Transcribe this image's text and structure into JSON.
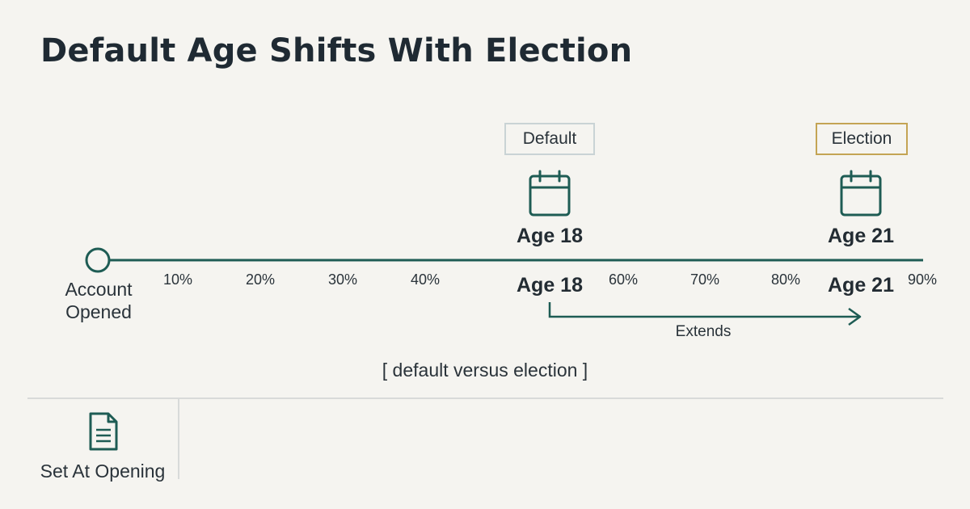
{
  "title": "Default Age Shifts With Election",
  "colors": {
    "background": "#f5f4f0",
    "accent": "#1e5c54",
    "title": "#1f2a33",
    "default_tag_border": "#c9d3d5",
    "election_tag_border": "#c4a454",
    "divider": "#d8dad9"
  },
  "timeline": {
    "origin_label_line1": "Account",
    "origin_label_line2": "Opened",
    "ticks": [
      "10%",
      "20%",
      "30%",
      "40%",
      "60%",
      "70%",
      "80%",
      "90%"
    ],
    "default": {
      "tag": "Default",
      "icon": "calendar-icon",
      "age_top": "Age 18",
      "age_bottom": "Age 18"
    },
    "election": {
      "tag": "Election",
      "icon": "calendar-icon",
      "age_top": "Age 21",
      "age_bottom": "Age 21"
    },
    "extends_label": "Extends"
  },
  "caption": "[ default versus election ]",
  "footer": {
    "icon": "document-icon",
    "label": "Set At Opening"
  }
}
